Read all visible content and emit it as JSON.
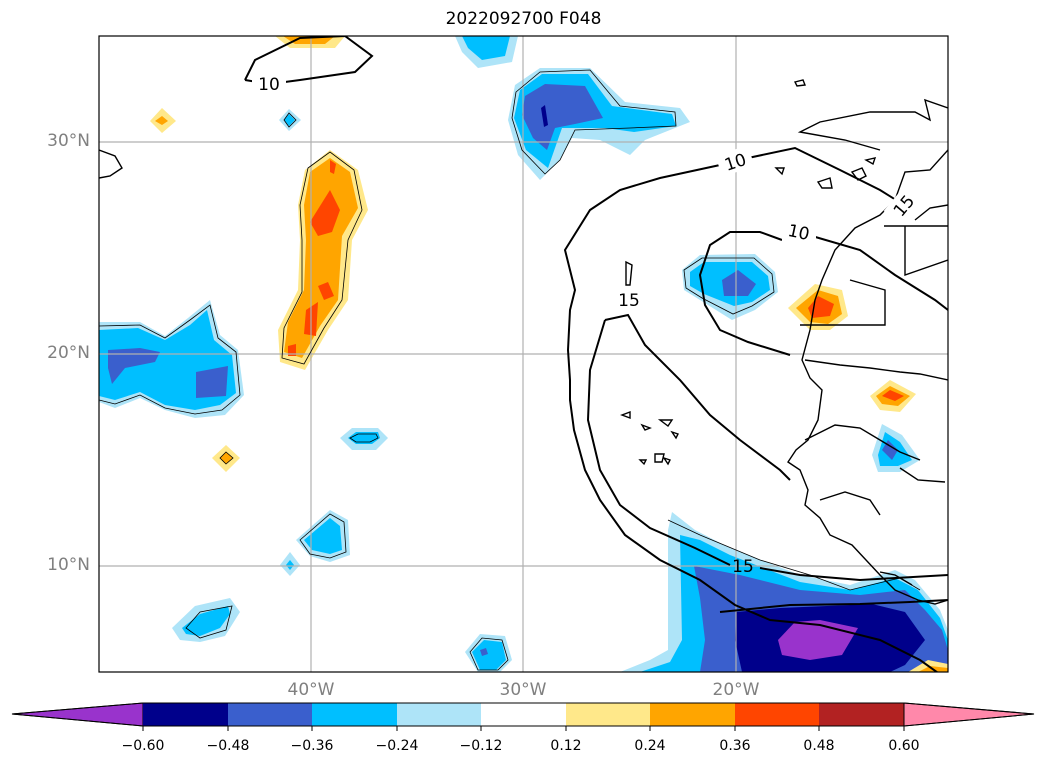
{
  "title": "2022092700 F048",
  "latitude_labels": [
    "30°N",
    "20°N",
    "10°N"
  ],
  "longitude_labels": [
    "40°W",
    "30°W",
    "20°W"
  ],
  "contour_labels": [
    "10",
    "10",
    "10",
    "15",
    "15",
    "15"
  ],
  "colorbar": {
    "tick_labels": [
      "−0.60",
      "−0.48",
      "−0.36",
      "−0.24",
      "−0.12",
      "0.12",
      "0.24",
      "0.36",
      "0.48",
      "0.60"
    ],
    "colors": [
      "#9933cc",
      "#00008b",
      "#3a5fcd",
      "#00bfff",
      "#aee4f8",
      "#ffffff",
      "#ffe88a",
      "#ffa500",
      "#ff4500",
      "#b22222",
      "#ff88aa"
    ]
  },
  "colors": {
    "gridline": "#b0b0b0",
    "axis_label": "#808080",
    "contour": "#000000"
  }
}
